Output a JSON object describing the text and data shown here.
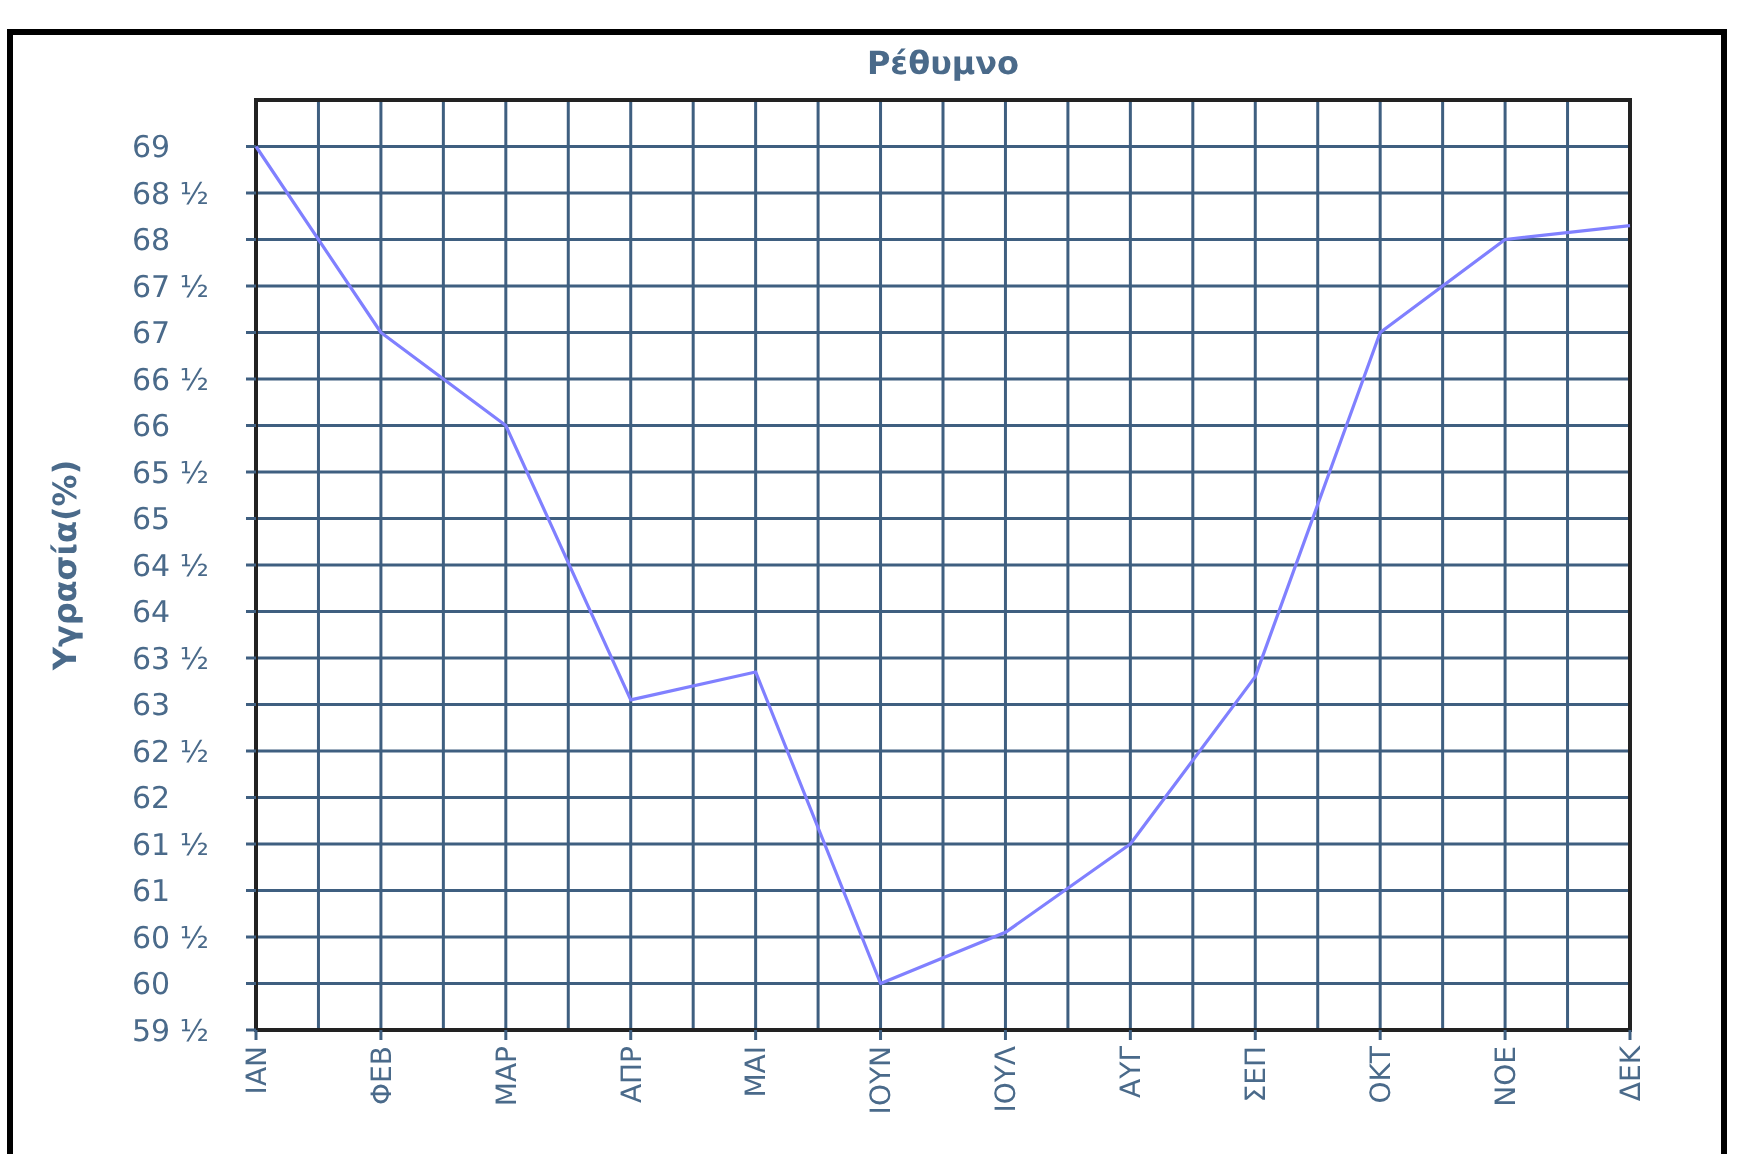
{
  "chart_data": {
    "type": "line",
    "title": "Ρέθυμνο",
    "ylabel": "Υγρασία(%)",
    "categories": [
      "ΙΑΝ",
      "ΦΕΒ",
      "ΜΑΡ",
      "ΑΠΡ",
      "ΜΑΙ",
      "ΙΟΥΝ",
      "ΙΟΥΛ",
      "ΑΥΓ",
      "ΣΕΠ",
      "ΟΚΤ",
      "ΝΟΕ",
      "ΔΕΚ"
    ],
    "series": [
      {
        "color": "#8080ff",
        "values": [
          69,
          67,
          66,
          63.05,
          63.35,
          60,
          60.55,
          61.5,
          63.3,
          67,
          68,
          68.15
        ]
      }
    ],
    "ylim": [
      59.5,
      69.5
    ],
    "yticks": [
      {
        "value": 59.5,
        "label": "59 ½"
      },
      60,
      {
        "value": 60.5,
        "label": "60 ½"
      },
      61,
      {
        "value": 61.5,
        "label": "61 ½"
      },
      62,
      {
        "value": 62.5,
        "label": "62 ½"
      },
      63,
      {
        "value": 63.5,
        "label": "63 ½"
      },
      64,
      {
        "value": 64.5,
        "label": "64 ½"
      },
      65,
      {
        "value": 65.5,
        "label": "65 ½"
      },
      66,
      {
        "value": 66.5,
        "label": "66 ½"
      },
      67,
      {
        "value": 67.5,
        "label": "67 ½"
      },
      68,
      {
        "value": 68.5,
        "label": "68 ½"
      },
      69
    ],
    "grid": true,
    "marker": "none",
    "line_style": "solid"
  }
}
